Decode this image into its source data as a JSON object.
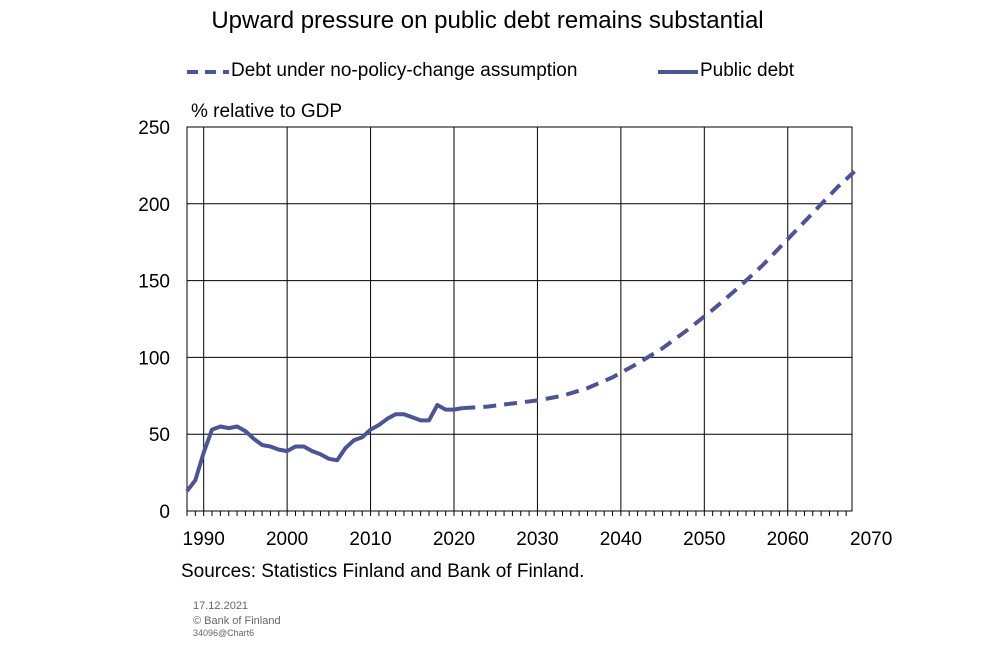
{
  "chart_data": {
    "type": "line",
    "title": "Upward pressure on public debt remains substantial",
    "ylabel": "% relative to GDP",
    "xlabel": "",
    "xlim": [
      1988,
      2070
    ],
    "ylim": [
      0,
      250
    ],
    "x_ticks": [
      "1990",
      "2000",
      "2010",
      "2020",
      "2030",
      "2040",
      "2050",
      "2060",
      "2070"
    ],
    "x_tick_values": [
      1990,
      2000,
      2010,
      2020,
      2030,
      2040,
      2050,
      2060,
      2070
    ],
    "y_ticks": [
      "0",
      "50",
      "100",
      "150",
      "200",
      "250"
    ],
    "y_tick_values": [
      0,
      50,
      100,
      150,
      200,
      250
    ],
    "grid": true,
    "legend_position": "top",
    "series": [
      {
        "name": "Debt under no-policy-change assumption",
        "style": "dashed",
        "color": "#4b5399",
        "x": [
          2021,
          2024,
          2027,
          2030,
          2033,
          2036,
          2039,
          2042,
          2045,
          2048,
          2051,
          2054,
          2057,
          2060,
          2063,
          2066,
          2068
        ],
        "y": [
          67,
          68,
          70,
          72,
          75,
          80,
          87,
          96,
          106,
          118,
          131,
          145,
          160,
          177,
          194,
          211,
          221
        ]
      },
      {
        "name": "Public debt",
        "style": "solid",
        "color": "#4b5399",
        "x": [
          1988,
          1989,
          1990,
          1991,
          1992,
          1993,
          1994,
          1995,
          1996,
          1997,
          1998,
          1999,
          2000,
          2001,
          2002,
          2003,
          2004,
          2005,
          2006,
          2007,
          2008,
          2009,
          2010,
          2011,
          2012,
          2013,
          2014,
          2015,
          2016,
          2017,
          2018,
          2019,
          2020,
          2021
        ],
        "y": [
          13,
          20,
          38,
          53,
          55,
          54,
          55,
          52,
          47,
          43,
          42,
          40,
          39,
          42,
          42,
          39,
          37,
          34,
          33,
          41,
          46,
          48,
          53,
          56,
          60,
          63,
          63,
          61,
          59,
          59,
          69,
          66,
          66,
          67
        ]
      }
    ],
    "sources": "Sources: Statistics Finland and Bank of Finland."
  },
  "footer": {
    "date": "17.12.2021",
    "copyright": "© Bank of Finland",
    "code": "34096@Chart6"
  }
}
